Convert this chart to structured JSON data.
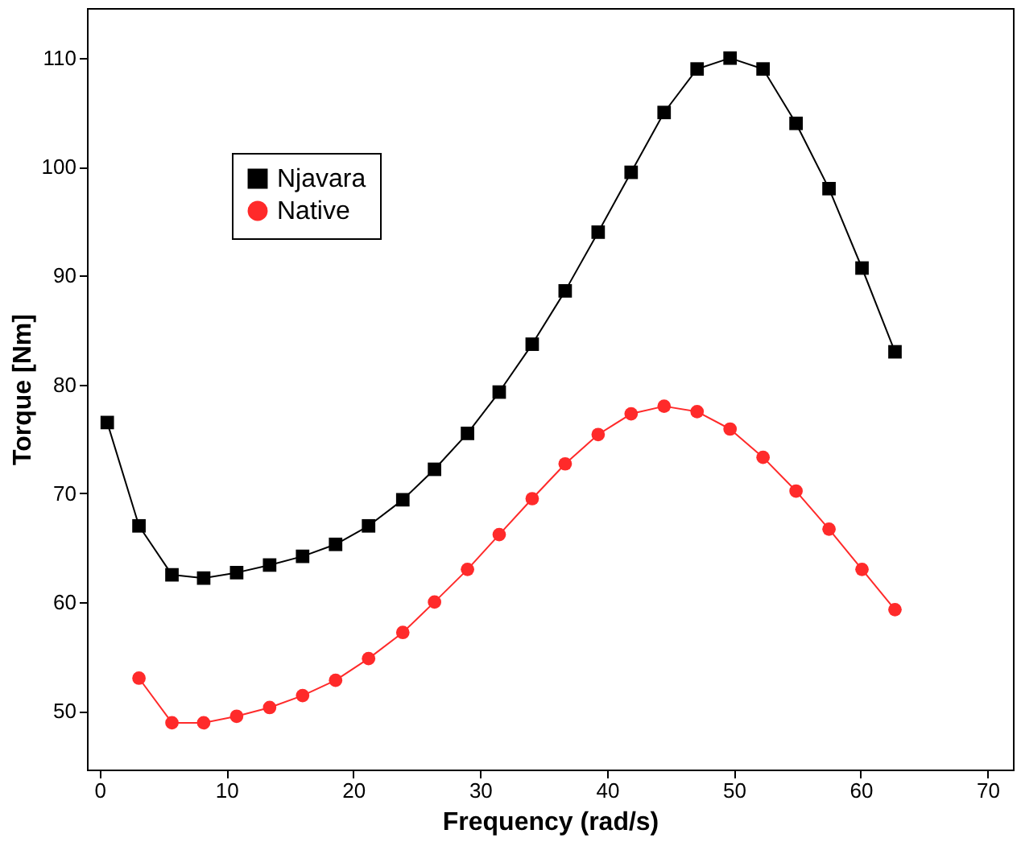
{
  "chart_data": {
    "type": "line",
    "xlabel": "Frequency (rad/s)",
    "ylabel": "Torque [Nm]",
    "xlim": [
      -1,
      72
    ],
    "ylim": [
      44.6,
      114.6
    ],
    "xticks": [
      0,
      10,
      20,
      30,
      40,
      50,
      60,
      70
    ],
    "yticks": [
      50,
      60,
      70,
      80,
      90,
      100,
      110
    ],
    "grid": false,
    "legend": "top left",
    "series": [
      {
        "name": "Njavara",
        "color": "#000000",
        "marker": "square",
        "x": [
          0.6,
          3.1,
          5.7,
          8.2,
          10.8,
          13.4,
          16,
          18.6,
          21.2,
          23.9,
          26.4,
          29,
          31.5,
          34.1,
          36.7,
          39.3,
          41.9,
          44.5,
          47.1,
          49.7,
          52.3,
          54.9,
          57.5,
          60.1,
          62.7
        ],
        "values": [
          76.5,
          67,
          62.5,
          62.2,
          62.7,
          63.4,
          64.2,
          65.3,
          67,
          69.4,
          72.2,
          75.5,
          79.3,
          83.7,
          88.6,
          94,
          99.5,
          105,
          109,
          110,
          109,
          104,
          98,
          90.7,
          83
        ]
      },
      {
        "name": "Native",
        "color": "#ff2a2a",
        "marker": "circle",
        "x": [
          3.1,
          5.7,
          8.2,
          10.8,
          13.4,
          16,
          18.6,
          21.2,
          23.9,
          26.4,
          29,
          31.5,
          34.1,
          36.7,
          39.3,
          41.9,
          44.5,
          47.1,
          49.7,
          52.3,
          54.9,
          57.5,
          60.1,
          62.7
        ],
        "values": [
          53,
          48.9,
          48.9,
          49.5,
          50.3,
          51.4,
          52.8,
          54.8,
          57.2,
          60,
          63,
          66.2,
          69.5,
          72.7,
          75.4,
          77.3,
          78,
          77.5,
          75.9,
          73.3,
          70.2,
          66.7,
          63,
          59.3
        ]
      }
    ]
  }
}
